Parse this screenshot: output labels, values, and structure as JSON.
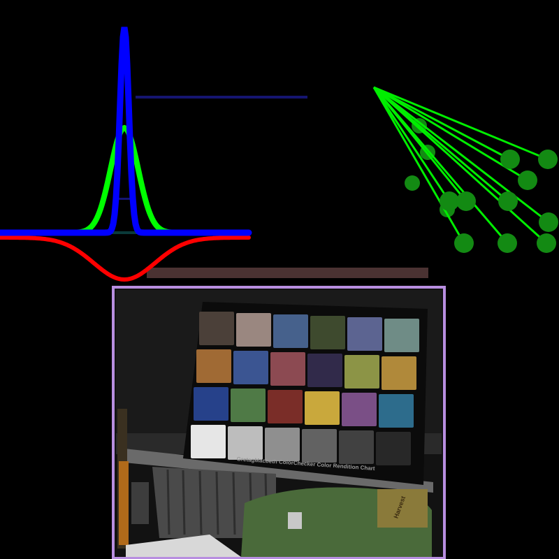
{
  "colors": {
    "background": "#000000",
    "peak_tall": "#0000ff",
    "peak_short": "#00ff00",
    "trough": "#ff0000",
    "baseline": "#000000",
    "blue_bar": "#151570",
    "brown_bar": "#4a3232",
    "fan_lines": "#00ee00",
    "fan_dots": "#138a13",
    "photo_frame": "#b88ee0"
  },
  "curves": {
    "peak_tall_level": 0.98,
    "peak_short_level": 0.5,
    "trough_level": 0.2
  },
  "photo": {
    "checker_caption": "GretagMacbeth ColorChecker Color Rendition Chart",
    "bag_label": "Harvest",
    "checker_patches": [
      "#4b4039",
      "#9a8780",
      "#46618c",
      "#3e4a2e",
      "#5c6491",
      "#6f8c86",
      "#a06a34",
      "#3b5592",
      "#8c4a52",
      "#312a4a",
      "#8c9446",
      "#b0893a",
      "#26418a",
      "#4f7a46",
      "#7a2d28",
      "#c9a83c",
      "#7a4f86",
      "#2d6c8c",
      "#e6e6e6",
      "#bdbdbd",
      "#8f8f8f",
      "#626262",
      "#414141",
      "#282828"
    ]
  }
}
